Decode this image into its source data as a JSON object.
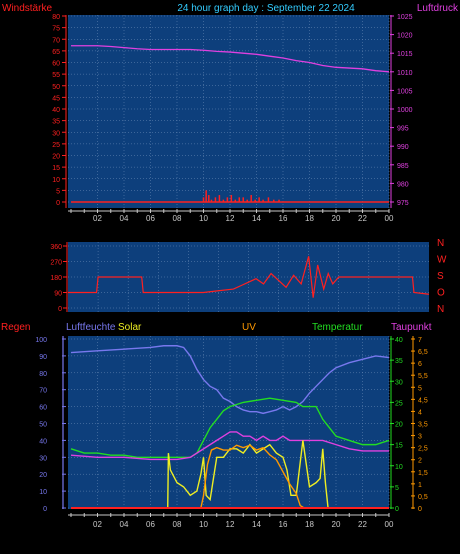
{
  "colors": {
    "background": "#000000",
    "plot_bg": "#0d3f7c",
    "grid": "#6c8db8",
    "red": "#ff2020",
    "cyan": "#33ccff",
    "magenta": "#e040e0",
    "axis_x": "#c8c8c8",
    "humidity": "#7878ee",
    "temperature": "#22dd22",
    "solar": "#eeee22",
    "uv": "#ff9900",
    "dewpoint": "#cc22cc"
  },
  "chart_data": [
    {
      "type": "line",
      "title": "24 hour graph day : September 22 2024",
      "left_label": "Windstärke",
      "right_label": "Luftdruck",
      "x_ticks": [
        "02",
        "04",
        "06",
        "08",
        "10",
        "12",
        "14",
        "16",
        "18",
        "20",
        "22",
        "00"
      ],
      "y_left_ticks": [
        "0",
        "5",
        "10",
        "15",
        "20",
        "25",
        "30",
        "35",
        "40",
        "45",
        "50",
        "55",
        "60",
        "65",
        "70",
        "75",
        "80"
      ],
      "y_left_range": [
        0,
        80
      ],
      "y_right_ticks": [
        "975",
        "980",
        "985",
        "990",
        "995",
        "1000",
        "1005",
        "1010",
        "1015",
        "1020",
        "1025"
      ],
      "y_right_range": [
        975,
        1025
      ],
      "series": [
        {
          "name": "Luftdruck",
          "axis": "right",
          "color": "#e040e0",
          "x": [
            0,
            1,
            2,
            3,
            4,
            5,
            6,
            7,
            8,
            9,
            10,
            11,
            12,
            13,
            14,
            15,
            16,
            17,
            18,
            19,
            20,
            21,
            22,
            23,
            24
          ],
          "values": [
            1017.0,
            1017.0,
            1017.0,
            1016.8,
            1016.5,
            1016.2,
            1016.0,
            1016.0,
            1016.0,
            1016.0,
            1015.8,
            1015.5,
            1015.3,
            1015.0,
            1014.7,
            1014.2,
            1013.7,
            1013.0,
            1012.5,
            1011.7,
            1011.2,
            1011.0,
            1010.8,
            1010.3,
            1010.0
          ]
        },
        {
          "name": "Windstärke",
          "axis": "left",
          "color": "#ff2020",
          "x": [
            10.0,
            10.2,
            10.4,
            10.6,
            10.9,
            11.2,
            11.5,
            11.8,
            12.1,
            12.4,
            12.7,
            13.0,
            13.3,
            13.6,
            13.9,
            14.2,
            14.5,
            14.9,
            15.3,
            15.7
          ],
          "values": [
            2,
            5,
            3,
            1,
            2,
            3,
            1,
            2,
            3,
            1,
            2,
            2,
            1,
            3,
            1,
            2,
            1,
            2,
            1,
            1
          ]
        }
      ]
    },
    {
      "type": "line",
      "left_label": "",
      "right_compass": [
        "N",
        "W",
        "S",
        "O",
        "N"
      ],
      "x_ticks": [],
      "y_left_ticks": [
        "0",
        "90",
        "180",
        "270",
        "360"
      ],
      "y_left_range": [
        0,
        360
      ],
      "series": [
        {
          "name": "Windrichtung",
          "color": "#ff2020",
          "x": [
            0,
            1.9,
            2.0,
            4.9,
            5.0,
            9.0,
            10.0,
            11.0,
            11.5,
            12.0,
            12.5,
            13.0,
            13.5,
            14.0,
            14.5,
            15.0,
            15.5,
            16.0,
            16.3,
            16.6,
            17.0,
            17.3,
            17.6,
            18.0,
            18.5,
            19.0,
            20.0,
            21.0,
            22.0,
            22.9,
            23.0,
            24.0
          ],
          "values": [
            90,
            90,
            180,
            180,
            90,
            90,
            100,
            110,
            130,
            150,
            170,
            140,
            200,
            160,
            120,
            190,
            140,
            300,
            60,
            250,
            110,
            200,
            140,
            180,
            180,
            180,
            180,
            180,
            180,
            180,
            90,
            80
          ]
        }
      ]
    },
    {
      "type": "line",
      "labels": {
        "left_outer": "Regen",
        "left_inner": "Luftfeuchte",
        "solar": "Solar",
        "uv": "UV",
        "temperature": "Temperatur",
        "dewpoint": "Taupunkt"
      },
      "x_ticks": [
        "02",
        "04",
        "06",
        "08",
        "10",
        "12",
        "14",
        "16",
        "18",
        "20",
        "22",
        "00"
      ],
      "y_left_ticks": [
        "0",
        "10",
        "20",
        "30",
        "40",
        "50",
        "60",
        "70",
        "80",
        "90",
        "100"
      ],
      "y_left_range": [
        0,
        100
      ],
      "y_temp_ticks": [
        "0",
        "5",
        "10",
        "15",
        "20",
        "25",
        "30",
        "35",
        "40"
      ],
      "y_temp_range": [
        0,
        40
      ],
      "y_uv_ticks": [
        "0",
        "0,5",
        "1",
        "1,5",
        "2",
        "2,5",
        "3",
        "3,5",
        "4",
        "4,5",
        "5",
        "5,5",
        "6",
        "6,5",
        "7"
      ],
      "y_uv_range": [
        0,
        7
      ],
      "series": [
        {
          "name": "Luftfeuchte",
          "axis": "left",
          "color": "#7878ee",
          "x": [
            0,
            2,
            4,
            6,
            7,
            8,
            8.5,
            9,
            9.5,
            10,
            10.5,
            11,
            11.5,
            12,
            12.5,
            13,
            13.5,
            14,
            14.5,
            15,
            15.5,
            16,
            16.5,
            17,
            17.5,
            18,
            18.5,
            19,
            19.5,
            20,
            21,
            22,
            23,
            24
          ],
          "values": [
            92,
            93,
            94,
            95,
            96,
            96,
            95,
            90,
            82,
            76,
            72,
            70,
            65,
            63,
            60,
            58,
            57,
            57,
            56,
            57,
            58,
            60,
            58,
            60,
            63,
            68,
            72,
            76,
            80,
            83,
            86,
            88,
            90,
            89
          ]
        },
        {
          "name": "Temperatur",
          "axis": "temp",
          "color": "#22dd22",
          "x": [
            0,
            1,
            2,
            3,
            4,
            5,
            6,
            7,
            8,
            9,
            9.5,
            10,
            10.5,
            11,
            11.5,
            12,
            12.5,
            13,
            14,
            15,
            16,
            17,
            17.5,
            18,
            18.5,
            19,
            19.5,
            20,
            21,
            22,
            23,
            24
          ],
          "values": [
            14,
            13,
            13,
            12.5,
            12.5,
            12,
            12,
            12,
            12,
            12,
            13,
            16,
            19,
            21,
            23,
            24,
            24.5,
            25,
            25.5,
            26,
            25.5,
            25,
            24,
            24,
            24,
            21,
            19,
            17,
            16,
            15,
            15,
            16
          ]
        },
        {
          "name": "Taupunkt",
          "axis": "temp",
          "color": "#e040e0",
          "x": [
            0,
            2,
            4,
            6,
            8,
            9,
            10,
            10.5,
            11,
            11.5,
            12,
            12.5,
            13,
            13.5,
            14,
            14.5,
            15,
            15.5,
            16,
            16.5,
            17,
            18,
            19,
            20,
            21,
            22,
            23,
            24
          ],
          "values": [
            12.5,
            12,
            12,
            11.5,
            11.5,
            12,
            14,
            15,
            16,
            17,
            18,
            18,
            17,
            17,
            16,
            17,
            16,
            16,
            17,
            16,
            16,
            16,
            16,
            15,
            14,
            13.5,
            13.5,
            13.5
          ]
        },
        {
          "name": "Solar",
          "axis": "temp",
          "color": "#eeee22",
          "x": [
            0,
            7.3,
            7.35,
            7.5,
            8,
            8.5,
            9,
            9.5,
            9.8,
            10,
            10.2,
            10.5,
            11,
            11.5,
            12,
            12.5,
            13,
            13.5,
            14,
            14.5,
            15,
            15.5,
            16,
            16.3,
            16.6,
            17,
            17.5,
            18,
            18.5,
            18.8,
            19,
            19.2,
            19.4,
            19.5,
            24
          ],
          "values": [
            0,
            0,
            13,
            9,
            6,
            5,
            3,
            4,
            8,
            12,
            3,
            2,
            12,
            12,
            14,
            14,
            13,
            15,
            13,
            14,
            15,
            13,
            12,
            9,
            3,
            3,
            16,
            5,
            6,
            7,
            14,
            6,
            0,
            0,
            0
          ]
        },
        {
          "name": "UV",
          "axis": "uv",
          "color": "#ff9900",
          "x": [
            0,
            9.8,
            10,
            10.3,
            10.6,
            11,
            11.5,
            12,
            12.5,
            13,
            13.5,
            14,
            14.5,
            15,
            15.5,
            16,
            16.5,
            17,
            17.3,
            17.6,
            24
          ],
          "values": [
            0,
            0,
            0.5,
            1.8,
            2.4,
            2.5,
            2.4,
            2.4,
            2.6,
            2.5,
            2.6,
            2.4,
            2.5,
            2.2,
            2.0,
            1.5,
            1.0,
            0.6,
            0.1,
            0,
            0
          ]
        },
        {
          "name": "Regen",
          "axis": "left",
          "color": "#ff2020",
          "x": [
            0,
            24
          ],
          "values": [
            0,
            0
          ]
        }
      ]
    }
  ]
}
